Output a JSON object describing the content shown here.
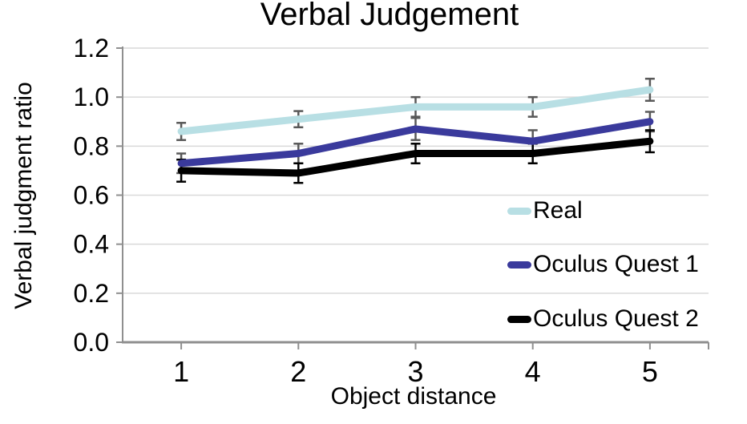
{
  "chart_data": {
    "type": "line",
    "title": "Verbal Judgement",
    "xlabel": "Object distance",
    "ylabel": "Verbal judgment ratio",
    "x": [
      1,
      2,
      3,
      4,
      5
    ],
    "xtick_labels": [
      "1",
      "2",
      "3",
      "4",
      "5"
    ],
    "ylim": [
      0,
      1.2
    ],
    "yticks": [
      0.0,
      0.2,
      0.4,
      0.6,
      0.8,
      1.0,
      1.2
    ],
    "ytick_labels": [
      "0.0",
      "0.2",
      "0.4",
      "0.6",
      "0.8",
      "1.0",
      "1.2"
    ],
    "grid": "horizontal",
    "legend_position": "inside-right",
    "series": [
      {
        "name": "Real",
        "color": "#b8dfe4",
        "values": [
          0.86,
          0.91,
          0.96,
          0.96,
          1.03
        ],
        "errors": [
          0.035,
          0.033,
          0.04,
          0.04,
          0.045
        ],
        "error_color": "#595959"
      },
      {
        "name": "Oculus Quest 1",
        "color": "#3a3a9c",
        "values": [
          0.73,
          0.77,
          0.87,
          0.82,
          0.9
        ],
        "errors": [
          0.04,
          0.04,
          0.045,
          0.045,
          0.04
        ],
        "error_color": "#595959"
      },
      {
        "name": "Oculus Quest 2",
        "color": "#000000",
        "values": [
          0.7,
          0.69,
          0.77,
          0.77,
          0.82
        ],
        "errors": [
          0.045,
          0.04,
          0.04,
          0.04,
          0.045
        ],
        "error_color": "#000000"
      }
    ],
    "grid_color": "#d9d9d9",
    "axis_color": "#8f8f8f"
  }
}
